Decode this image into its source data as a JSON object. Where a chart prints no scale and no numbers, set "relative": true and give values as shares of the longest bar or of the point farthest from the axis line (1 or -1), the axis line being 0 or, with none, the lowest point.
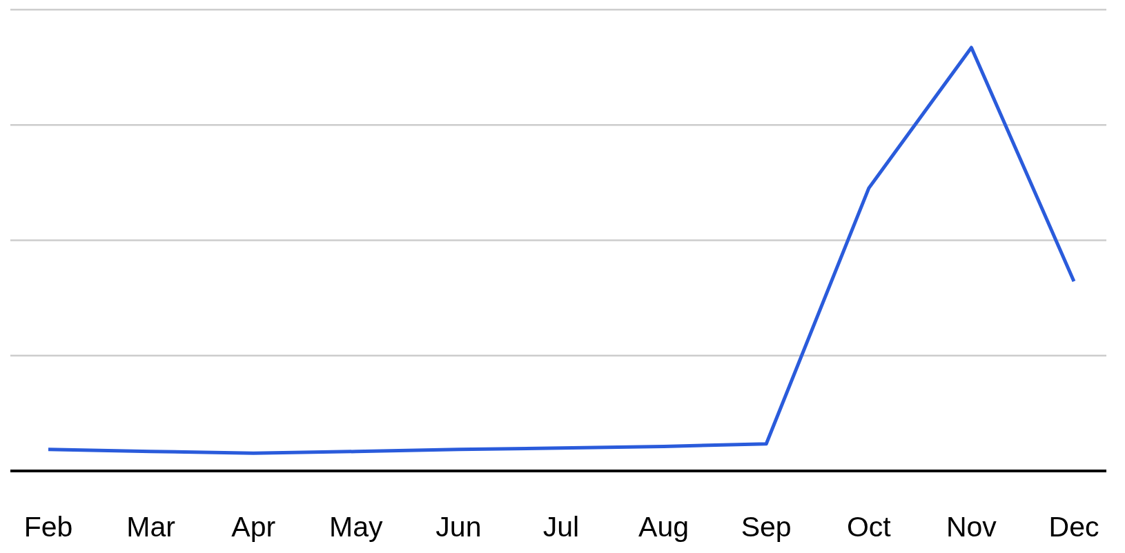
{
  "chart_data": {
    "type": "line",
    "relative": true,
    "grid": "y",
    "categories": [
      "Feb",
      "Mar",
      "Apr",
      "May",
      "Jun",
      "Jul",
      "Aug",
      "Sep",
      "Oct",
      "Nov",
      "Dec"
    ],
    "series": [
      {
        "color": "#2a5bdb",
        "values": [
          0.051,
          0.046,
          0.042,
          0.046,
          0.051,
          0.054,
          0.058,
          0.064,
          0.668,
          1,
          0.448
        ]
      }
    ]
  }
}
